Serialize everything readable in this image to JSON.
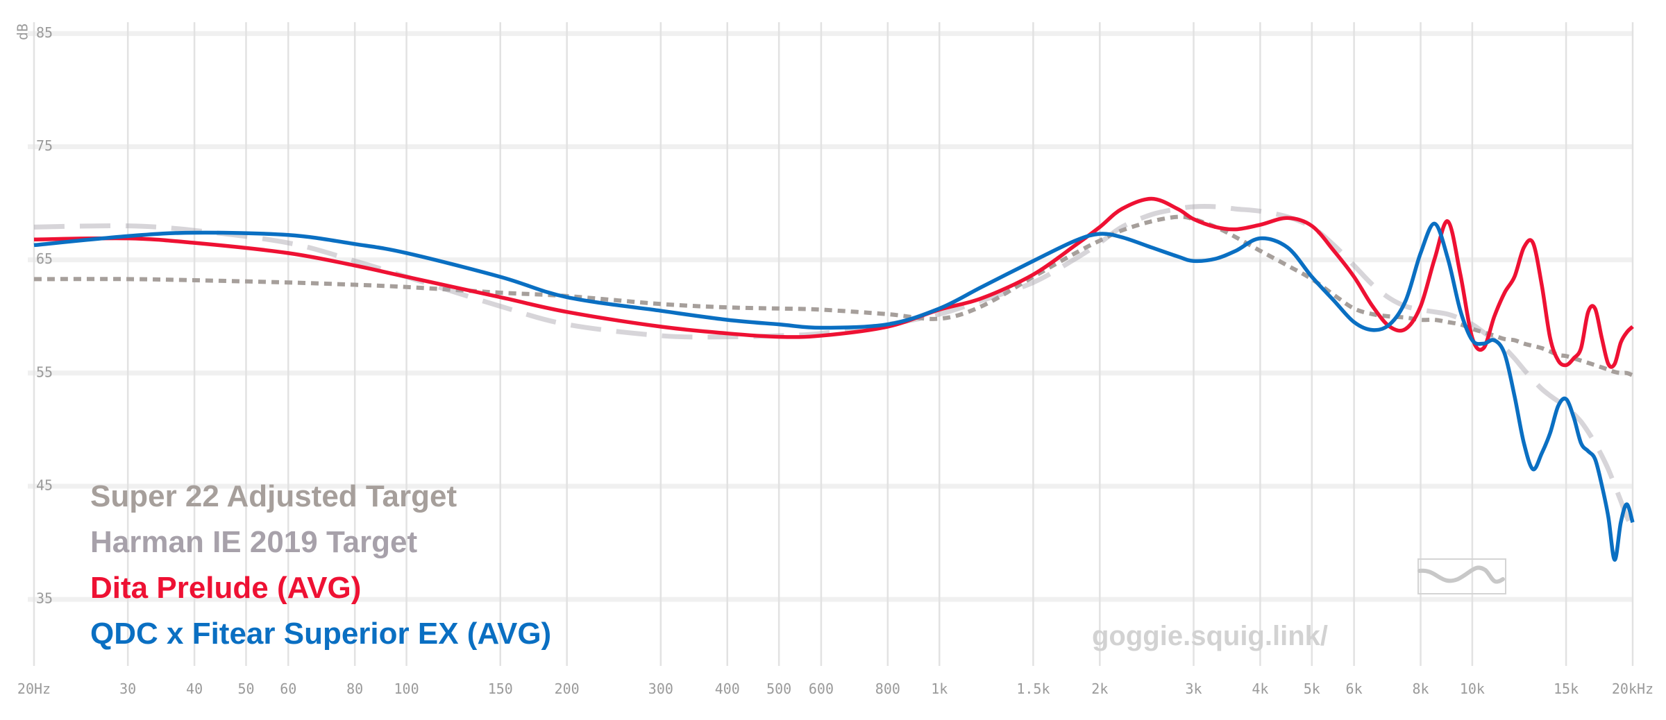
{
  "chart_data": {
    "type": "line",
    "y_label": "dB",
    "x_log": true,
    "grid": true,
    "legend": "lower left",
    "annotation": "goggie.squig.link/",
    "xlim": [
      20,
      20000
    ],
    "ylim": [
      29,
      86
    ],
    "yticks": [
      35,
      45,
      55,
      65,
      75,
      85
    ],
    "xticks": [
      {
        "value": 20,
        "label": "20Hz"
      },
      30,
      40,
      50,
      60,
      80,
      100,
      150,
      200,
      300,
      400,
      500,
      600,
      800,
      {
        "value": 1000,
        "label": "1k"
      },
      {
        "value": 1500,
        "label": "1.5k"
      },
      {
        "value": 2000,
        "label": "2k"
      },
      {
        "value": 3000,
        "label": "3k"
      },
      {
        "value": 4000,
        "label": "4k"
      },
      {
        "value": 5000,
        "label": "5k"
      },
      {
        "value": 6000,
        "label": "6k"
      },
      {
        "value": 8000,
        "label": "8k"
      },
      {
        "value": 10000,
        "label": "10k"
      },
      {
        "value": 15000,
        "label": "15k"
      },
      {
        "value": 20000,
        "label": "20kHz"
      }
    ],
    "x": [
      20,
      30,
      40,
      60,
      80,
      100,
      150,
      200,
      300,
      400,
      500,
      600,
      800,
      1000,
      1200,
      1500,
      1800,
      2000,
      2200,
      2500,
      2800,
      3000,
      3300,
      3600,
      4000,
      4500,
      5000,
      5500,
      6000,
      6500,
      7000,
      7500,
      8000,
      8500,
      9000,
      9500,
      10000,
      10500,
      11000,
      11500,
      12000,
      12500,
      13000,
      13500,
      14000,
      14500,
      15000,
      15500,
      16000,
      16500,
      17000,
      17500,
      18000,
      18500,
      19000,
      19500,
      20000
    ],
    "series": [
      {
        "name": "Super 22 Adjusted Target",
        "color": "#a69f9b",
        "dash": "dotted",
        "values": [
          63.3,
          63.3,
          63.2,
          63.0,
          62.8,
          62.6,
          62.1,
          61.8,
          61.1,
          60.8,
          60.7,
          60.6,
          60.2,
          59.8,
          60.9,
          63.5,
          65.6,
          66.7,
          67.6,
          68.4,
          68.8,
          68.6,
          67.9,
          67.0,
          65.8,
          64.5,
          63.3,
          61.9,
          60.7,
          60.2,
          60.0,
          59.9,
          59.7,
          59.7,
          59.5,
          59.3,
          58.9,
          58.6,
          58.3,
          58.0,
          57.9,
          57.6,
          57.4,
          57.2,
          56.9,
          56.6,
          56.5,
          56.3,
          56.1,
          55.9,
          55.7,
          55.5,
          55.3,
          55.1,
          55.0,
          55.0,
          54.8
        ]
      },
      {
        "name": "Harman IE 2019 Target",
        "color": "#a7a1aa",
        "dash": "dashed",
        "values": [
          67.9,
          68.0,
          67.6,
          66.5,
          64.9,
          63.5,
          60.9,
          59.3,
          58.3,
          58.2,
          58.3,
          58.5,
          59.3,
          60.2,
          61.4,
          63.0,
          65.1,
          66.5,
          67.9,
          69.0,
          69.5,
          69.7,
          69.7,
          69.5,
          69.3,
          68.8,
          67.9,
          66.3,
          64.5,
          62.8,
          61.6,
          60.9,
          60.6,
          60.4,
          60.2,
          59.8,
          59.3,
          58.6,
          57.9,
          57.2,
          56.3,
          55.3,
          54.4,
          53.6,
          53.0,
          52.5,
          52.1,
          51.4,
          50.7,
          49.8,
          48.8,
          47.7,
          46.5,
          45.1,
          43.7,
          42.3,
          41.3
        ]
      },
      {
        "name": "Dita Prelude (AVG)",
        "color": "#ee1133",
        "dash": "solid",
        "values": [
          66.8,
          66.9,
          66.5,
          65.6,
          64.5,
          63.5,
          61.7,
          60.4,
          59.1,
          58.5,
          58.2,
          58.3,
          59.1,
          60.6,
          61.6,
          63.7,
          66.3,
          67.9,
          69.5,
          70.4,
          69.5,
          68.6,
          67.9,
          67.7,
          68.1,
          68.7,
          68.0,
          65.8,
          63.5,
          60.9,
          59.1,
          58.9,
          60.9,
          65.1,
          68.4,
          63.7,
          58.1,
          57.2,
          60.0,
          62.1,
          63.5,
          66.1,
          66.5,
          62.8,
          58.1,
          56.1,
          55.7,
          56.3,
          57.2,
          60.4,
          60.7,
          58.1,
          55.8,
          55.8,
          57.7,
          58.6,
          59.1
        ]
      },
      {
        "name": "QDC x Fitear Superior EX (AVG)",
        "color": "#0a6fc2",
        "dash": "solid",
        "values": [
          66.3,
          67.1,
          67.4,
          67.2,
          66.4,
          65.6,
          63.5,
          61.7,
          60.5,
          59.7,
          59.3,
          59.0,
          59.3,
          60.7,
          62.6,
          64.9,
          66.7,
          67.3,
          67.0,
          66.1,
          65.3,
          64.9,
          65.1,
          65.8,
          66.9,
          66.1,
          63.5,
          61.4,
          59.5,
          58.8,
          59.3,
          61.4,
          65.6,
          68.2,
          65.1,
          60.5,
          57.9,
          57.6,
          57.9,
          56.7,
          53.0,
          48.8,
          46.5,
          47.9,
          49.7,
          52.1,
          52.7,
          51.1,
          48.8,
          48.1,
          47.4,
          45.1,
          42.3,
          38.5,
          41.8,
          43.4,
          41.8
        ]
      }
    ]
  }
}
